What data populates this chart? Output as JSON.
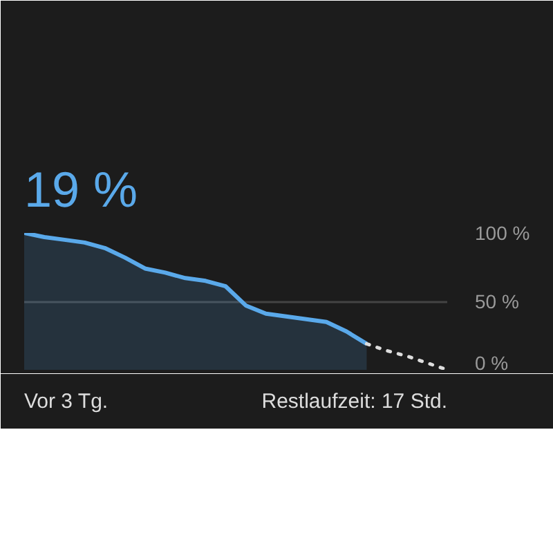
{
  "chart_data": {
    "type": "area",
    "title": "19 %",
    "categories": [
      null,
      null,
      null,
      null,
      null,
      null,
      null,
      null,
      null,
      null,
      null,
      null,
      null,
      null,
      null,
      null,
      null,
      null,
      null,
      null,
      null,
      null
    ],
    "series": [
      {
        "color": "#5aa9ea",
        "values": [
          100,
          97,
          95,
          93,
          89,
          82,
          74,
          71,
          67,
          65,
          61,
          47,
          41,
          39,
          37,
          35,
          28,
          19,
          null,
          null,
          null,
          null
        ]
      },
      {
        "type": "line",
        "color": "#dddddd",
        "line_style": "dotted",
        "values": [
          null,
          null,
          null,
          null,
          null,
          null,
          null,
          null,
          null,
          null,
          null,
          null,
          null,
          null,
          null,
          null,
          null,
          19,
          14,
          10,
          5,
          0
        ]
      }
    ],
    "ylim": [
      0,
      100
    ],
    "yticks": [
      {
        "value": 0,
        "label": "0 %"
      },
      {
        "value": 50,
        "label": "50 %"
      },
      {
        "value": 100,
        "label": "100 %"
      }
    ],
    "tick_labels": "y",
    "grid": "y",
    "annotations": [
      "Vor 3 Tg.",
      "Restlaufzeit: 17 Std."
    ]
  }
}
